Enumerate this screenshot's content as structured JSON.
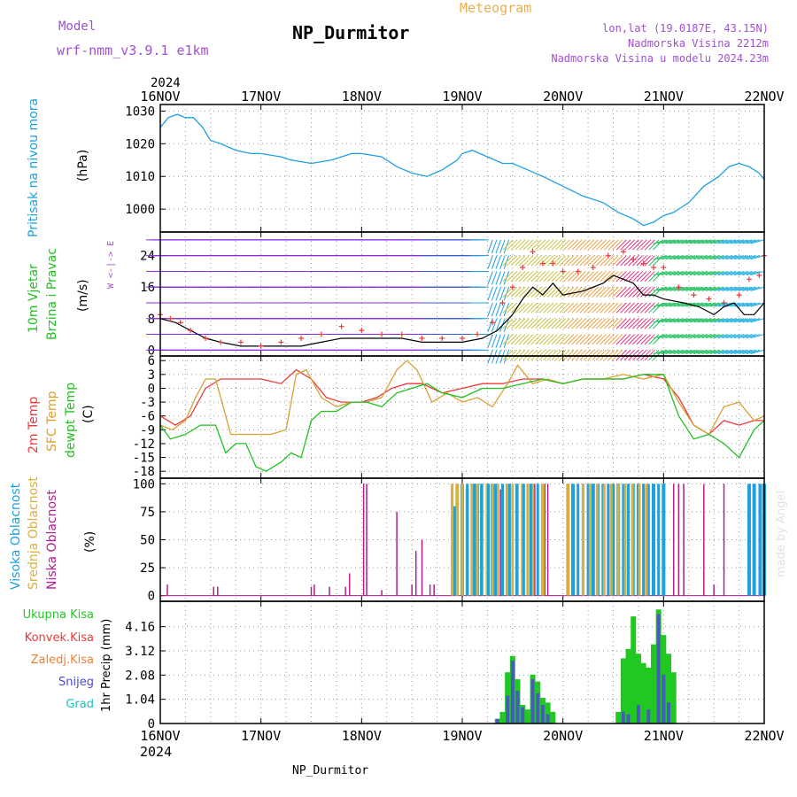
{
  "header": {
    "model_label": "Model",
    "model_name": "wrf-nmm_v3.9.1 e1km",
    "station": "NP_Durmitor",
    "product": "Meteogram",
    "lonlat": "lon,lat (19.0187E, 43.15N)",
    "altitude": "Nadmorska Visina 2212m",
    "model_altitude": "Nadmorska Visina u modelu 2024.23m",
    "footer_station": "NP_Durmitor",
    "credit": "made by Angel",
    "year": "2024"
  },
  "colors": {
    "pressure": "#1ca0e0",
    "t2m": "#e83c3c",
    "sfc": "#d8a030",
    "dewpt": "#22c022",
    "high_cloud": "#1ca0e0",
    "mid_cloud": "#d8b040",
    "low_cloud": "#b0208a",
    "total_precip": "#22c822",
    "conv_precip": "#e83c3c",
    "frz_precip": "#f08030",
    "snow": "#4a4ad0",
    "graupel": "#20c0c0",
    "title_purple": "#a050d0",
    "product_orange": "#e8b050"
  },
  "chart_data": [
    {
      "type": "line",
      "name": "pressure",
      "ylabel_main": "Pritisak na nivou mora",
      "ylabel_unit": "(hPa)",
      "ylim": [
        993,
        1032
      ],
      "yticks": [
        1000,
        1010,
        1020,
        1030
      ],
      "x_days": [
        "16NOV",
        "17NOV",
        "18NOV",
        "19NOV",
        "20NOV",
        "21NOV",
        "22NOV"
      ],
      "grid": true,
      "series": [
        {
          "x": [
            0,
            0.08,
            0.17,
            0.25,
            0.33,
            0.42,
            0.5,
            0.6,
            0.75,
            0.9,
            1.0,
            1.2,
            1.3,
            1.5,
            1.7,
            1.9,
            2.0,
            2.2,
            2.35,
            2.5,
            2.65,
            2.8,
            2.95,
            3.0,
            3.1,
            3.25,
            3.4,
            3.5,
            3.65,
            3.8,
            4.0,
            4.2,
            4.4,
            4.55,
            4.7,
            4.8,
            4.9,
            5.0,
            5.1,
            5.25,
            5.4,
            5.55,
            5.65,
            5.75,
            5.85,
            5.95,
            6.0
          ],
          "y": [
            1025,
            1028,
            1029,
            1028,
            1028,
            1025,
            1021,
            1020,
            1018,
            1017,
            1017,
            1016,
            1015,
            1014,
            1015,
            1017,
            1017,
            1016,
            1013,
            1011,
            1010,
            1012,
            1015,
            1017,
            1018,
            1016,
            1014,
            1014,
            1012,
            1010,
            1007,
            1004,
            1002,
            999,
            997,
            995,
            996,
            998,
            999,
            1002,
            1007,
            1010,
            1013,
            1014,
            1013,
            1011,
            1009
          ]
        }
      ]
    },
    {
      "type": "line",
      "name": "wind",
      "ylabel_main": "10m Vjetar",
      "ylabel_sub": "Brzina i Pravac",
      "ylabel_unit": "(m/s)",
      "compass": "W <-|-> E",
      "ylim": [
        -1.5,
        30
      ],
      "yticks": [
        0,
        8,
        16,
        24
      ],
      "grid": true,
      "series": [
        {
          "name": "speed",
          "x": [
            0,
            0.15,
            0.3,
            0.45,
            0.6,
            0.8,
            1.0,
            1.2,
            1.4,
            1.6,
            1.8,
            2.0,
            2.2,
            2.4,
            2.6,
            2.8,
            3.0,
            3.2,
            3.35,
            3.5,
            3.6,
            3.7,
            3.8,
            3.9,
            4.0,
            4.2,
            4.4,
            4.5,
            4.6,
            4.7,
            4.8,
            4.9,
            5.0,
            5.2,
            5.35,
            5.5,
            5.6,
            5.7,
            5.8,
            5.9,
            6.0
          ],
          "y": [
            8,
            7,
            5,
            3,
            2,
            1,
            1,
            1,
            1,
            2,
            3,
            3,
            3,
            3,
            2,
            2,
            2,
            3,
            5,
            9,
            13,
            16,
            14,
            17,
            14,
            15,
            17,
            19,
            18,
            17,
            14,
            14,
            13,
            12,
            11,
            9,
            11,
            12,
            9,
            9,
            12
          ]
        },
        {
          "name": "gust",
          "x": [
            0,
            0.1,
            0.2,
            0.3,
            0.45,
            0.6,
            0.8,
            1.0,
            1.2,
            1.4,
            1.6,
            1.8,
            2.0,
            2.2,
            2.4,
            2.6,
            2.8,
            3.0,
            3.15,
            3.3,
            3.4,
            3.5,
            3.6,
            3.7,
            3.8,
            3.9,
            4.0,
            4.15,
            4.3,
            4.45,
            4.6,
            4.7,
            4.8,
            4.9,
            5.0,
            5.15,
            5.3,
            5.45,
            5.6,
            5.75,
            5.85,
            5.95,
            6.0
          ],
          "y": [
            9,
            8,
            7,
            5,
            3,
            2,
            2,
            1,
            2,
            3,
            4,
            6,
            5,
            4,
            4,
            3,
            3,
            3,
            4,
            7,
            12,
            16,
            21,
            25,
            22,
            22,
            20,
            20,
            21,
            24,
            25,
            23,
            22,
            21,
            21,
            16,
            14,
            13,
            12,
            14,
            18,
            19,
            24
          ]
        }
      ]
    },
    {
      "type": "line",
      "name": "temperature",
      "ylabel_lines": [
        "2m Temp",
        "SFC Temp",
        "dewpt Temp"
      ],
      "ylabel_unit": "(C)",
      "ylim": [
        -19.5,
        7
      ],
      "yticks": [
        -18,
        -15,
        -12,
        -9,
        -6,
        -3,
        0,
        3,
        6
      ],
      "grid": true,
      "series": [
        {
          "name": "2m Temp",
          "x": [
            0,
            0.15,
            0.3,
            0.45,
            0.6,
            0.8,
            1.0,
            1.2,
            1.35,
            1.5,
            1.65,
            1.8,
            2.0,
            2.15,
            2.3,
            2.45,
            2.6,
            2.8,
            3.0,
            3.2,
            3.4,
            3.6,
            3.8,
            4.0,
            4.2,
            4.4,
            4.6,
            4.8,
            5.0,
            5.15,
            5.3,
            5.45,
            5.6,
            5.75,
            5.9,
            6.0
          ],
          "y": [
            -6,
            -8,
            -6,
            0,
            2,
            2,
            2,
            1,
            4,
            2,
            -2,
            -3,
            -3,
            -2,
            0,
            1,
            1,
            -1,
            0,
            1,
            1,
            2,
            2,
            1,
            2,
            2,
            2,
            3,
            2,
            -2,
            -8,
            -10,
            -7,
            -8,
            -7,
            -7
          ]
        },
        {
          "name": "SFC Temp",
          "x": [
            0,
            0.12,
            0.25,
            0.35,
            0.45,
            0.55,
            0.7,
            0.9,
            1.1,
            1.25,
            1.35,
            1.45,
            1.6,
            1.75,
            1.9,
            2.05,
            2.2,
            2.35,
            2.45,
            2.55,
            2.7,
            2.85,
            3.0,
            3.15,
            3.3,
            3.45,
            3.55,
            3.7,
            3.85,
            4.0,
            4.2,
            4.4,
            4.6,
            4.8,
            5.0,
            5.15,
            5.3,
            5.45,
            5.6,
            5.75,
            5.9,
            6.0
          ],
          "y": [
            -8,
            -9,
            -7,
            -2,
            2,
            2,
            -10,
            -10,
            -10,
            -9,
            3,
            4,
            -2,
            -4,
            -3,
            -3,
            -2,
            4,
            6,
            4,
            -3,
            -1,
            -3,
            -2,
            -4,
            1,
            5,
            1,
            2,
            1,
            2,
            2,
            3,
            2,
            3,
            -3,
            -8,
            -10,
            -4,
            -3,
            -7,
            -6
          ]
        },
        {
          "name": "dewpt Temp",
          "x": [
            0,
            0.1,
            0.25,
            0.4,
            0.55,
            0.65,
            0.75,
            0.85,
            0.95,
            1.05,
            1.2,
            1.3,
            1.4,
            1.5,
            1.6,
            1.75,
            1.9,
            2.05,
            2.2,
            2.35,
            2.5,
            2.65,
            2.8,
            3.0,
            3.2,
            3.4,
            3.6,
            3.8,
            4.0,
            4.2,
            4.4,
            4.6,
            4.8,
            5.0,
            5.15,
            5.3,
            5.45,
            5.6,
            5.75,
            5.9,
            6.0
          ],
          "y": [
            -8,
            -11,
            -10,
            -8,
            -8,
            -14,
            -12,
            -12,
            -17,
            -18,
            -16,
            -14,
            -15,
            -7,
            -5,
            -5,
            -3,
            -3,
            -4,
            -1,
            0,
            1,
            -1,
            -2,
            0,
            0,
            1,
            2,
            1,
            2,
            2,
            2,
            3,
            3,
            -6,
            -11,
            -10,
            -12,
            -15,
            -9,
            -7
          ]
        }
      ]
    },
    {
      "type": "bar",
      "name": "cloud",
      "ylabel_lines": [
        "Visoka Oblacnost",
        "Srednja Oblacnost",
        "Niska Oblacnost"
      ],
      "ylabel_unit": "(%)",
      "ylim": [
        -5,
        105
      ],
      "yticks": [
        0,
        25,
        50,
        75,
        100
      ],
      "grid": true,
      "series": [
        {
          "name": "Niska Oblacnost",
          "x": [
            0.07,
            0.53,
            0.57,
            1.5,
            1.53,
            1.68,
            1.84,
            1.88,
            2.02,
            2.05,
            2.2,
            2.35,
            2.5,
            2.54,
            2.6,
            2.68,
            2.72,
            3.3,
            3.38,
            3.72,
            3.82,
            3.85,
            4.2,
            4.25,
            4.5,
            4.62,
            4.7,
            5.1,
            5.15,
            5.2,
            5.4,
            5.5,
            5.6
          ],
          "y": [
            10,
            8,
            8,
            8,
            10,
            8,
            8,
            20,
            100,
            100,
            5,
            75,
            10,
            40,
            50,
            10,
            10,
            100,
            95,
            100,
            100,
            100,
            100,
            85,
            90,
            100,
            100,
            100,
            100,
            100,
            100,
            10,
            100
          ]
        },
        {
          "name": "Srednja Oblacnost",
          "x": [
            2.95,
            3.05,
            3.1,
            3.25,
            3.35,
            3.6,
            3.8,
            4.05,
            4.4,
            4.5
          ],
          "y": [
            100,
            95,
            100,
            100,
            100,
            100,
            100,
            100,
            100,
            100
          ]
        },
        {
          "name": "Visoka Oblacnost",
          "x": [
            2.92,
            3.0,
            3.15,
            3.3,
            3.45,
            3.7,
            4.1,
            4.3,
            4.55,
            4.75,
            4.9,
            5.0,
            5.85,
            5.9,
            5.96,
            6.0
          ],
          "y": [
            80,
            100,
            100,
            100,
            100,
            100,
            100,
            100,
            100,
            100,
            100,
            100,
            100,
            100,
            100,
            100
          ]
        }
      ]
    },
    {
      "type": "bar",
      "name": "precip",
      "ylabel_lines": [
        "Ukupna Kisa",
        "Konvek.Kisa",
        "Zaledj.Kisa",
        "Snijeg",
        "Grad"
      ],
      "ylabel_unit": "1hr Precip (mm)",
      "ylim": [
        0,
        5.25
      ],
      "yticks": [
        0,
        1.04,
        2.08,
        3.12,
        4.16
      ],
      "grid": true,
      "series": [
        {
          "name": "Ukupna Kisa",
          "x": [
            3.35,
            3.4,
            3.45,
            3.5,
            3.55,
            3.6,
            3.65,
            3.7,
            3.75,
            3.8,
            3.85,
            3.9,
            4.55,
            4.6,
            4.65,
            4.7,
            4.75,
            4.8,
            4.85,
            4.9,
            4.95,
            5.0,
            5.05,
            5.1
          ],
          "y": [
            0.2,
            0.5,
            2.2,
            2.9,
            1.9,
            0.8,
            0.6,
            2.1,
            1.8,
            1.1,
            0.9,
            0.5,
            0.5,
            2.8,
            3.2,
            4.6,
            3.0,
            2.6,
            2.4,
            3.4,
            4.9,
            3.8,
            3.0,
            2.2
          ]
        },
        {
          "name": "Snijeg",
          "x": [
            3.35,
            3.45,
            3.5,
            3.55,
            3.6,
            3.7,
            3.75,
            3.8,
            3.85,
            4.6,
            4.65,
            4.75,
            4.85,
            4.95,
            5.0,
            5.05
          ],
          "y": [
            0.2,
            1.2,
            2.7,
            1.4,
            0.7,
            1.9,
            1.3,
            0.8,
            0.4,
            0.5,
            0.4,
            0.8,
            0.6,
            4.7,
            2.1,
            0.9
          ]
        }
      ]
    }
  ]
}
